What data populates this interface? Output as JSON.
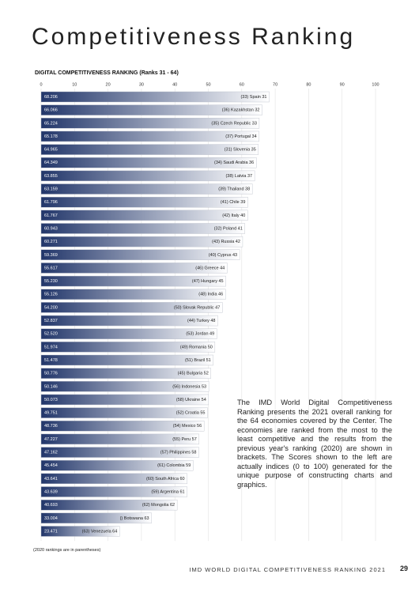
{
  "header": {
    "title": "Competitiveness Ranking"
  },
  "chart_data": {
    "type": "bar",
    "title": "DIGITAL COMPETITIVENESS RANKING (Ranks 31 - 64)",
    "categories": [
      "(33) Spain 31",
      "(36) Kazakhstan 32",
      "(35) Czech Republic 33",
      "(37) Portugal 34",
      "(31) Slovenia 35",
      "(34) Saudi Arabia 36",
      "(38) Latvia 37",
      "(39) Thailand 38",
      "(41) Chile 39",
      "(42) Italy 40",
      "(32) Poland 41",
      "(43) Russia 42",
      "(40) Cyprus 43",
      "(46) Greece 44",
      "(47) Hungary 45",
      "(48) India 46",
      "(50) Slovak Republic 47",
      "(44) Turkey 48",
      "(53) Jordan 49",
      "(49) Romania 50",
      "(51) Brazil 51",
      "(45) Bulgaria 52",
      "(56) Indonesia 53",
      "(58) Ukraine 54",
      "(52) Croatia 55",
      "(54) Mexico 56",
      "(55) Peru 57",
      "(57) Philippines 58",
      "(61) Colombia 59",
      "(60) South Africa 60",
      "(59) Argentina 61",
      "(62) Mongolia 62",
      "() Botswana 63",
      "(63) Venezuela 64"
    ],
    "values": [
      68.206,
      66.066,
      65.224,
      65.178,
      64.965,
      64.349,
      63.855,
      63.159,
      61.796,
      61.767,
      60.943,
      60.271,
      59.369,
      55.617,
      55.23,
      55.126,
      54.2,
      52.837,
      52.52,
      51.974,
      51.478,
      50.776,
      50.146,
      50.073,
      49.751,
      48.736,
      47.227,
      47.162,
      45.454,
      43.641,
      43.639,
      40.693,
      33.004,
      23.471
    ],
    "value_labels": [
      "68.206",
      "66.066",
      "65.224",
      "65.178",
      "64.965",
      "64.349",
      "63.855",
      "63.159",
      "61.796",
      "61.767",
      "60.943",
      "60.271",
      "59.369",
      "55.617",
      "55.230",
      "55.126",
      "54.200",
      "52.837",
      "52.520",
      "51.974",
      "51.478",
      "50.776",
      "50.146",
      "50.073",
      "49.751",
      "48.736",
      "47.227",
      "47.162",
      "45.454",
      "43.641",
      "43.639",
      "40.693",
      "33.004",
      "23.471"
    ],
    "color": "#22366a",
    "xlim": [
      0,
      100
    ],
    "xticks": [
      0,
      10,
      20,
      30,
      40,
      50,
      60,
      70,
      80,
      90,
      100
    ],
    "grid": true
  },
  "text": "The IMD World Digital Competitiveness Ranking presents the 2021 overall ranking for the 64 economies covered by the Center. The economies are ranked from the most to the least competitive and the results from the previous year's ranking (2020) are shown in brackets. The Scores shown to the left are actually indices (0 to 100) generated for the unique purpose of constructing charts and graphics.",
  "footnote": "(2020 rankings are in parentheses)",
  "footer": {
    "running_title": "IMD WORLD DIGITAL COMPETITIVENESS RANKING 2021",
    "page_number": "29"
  }
}
